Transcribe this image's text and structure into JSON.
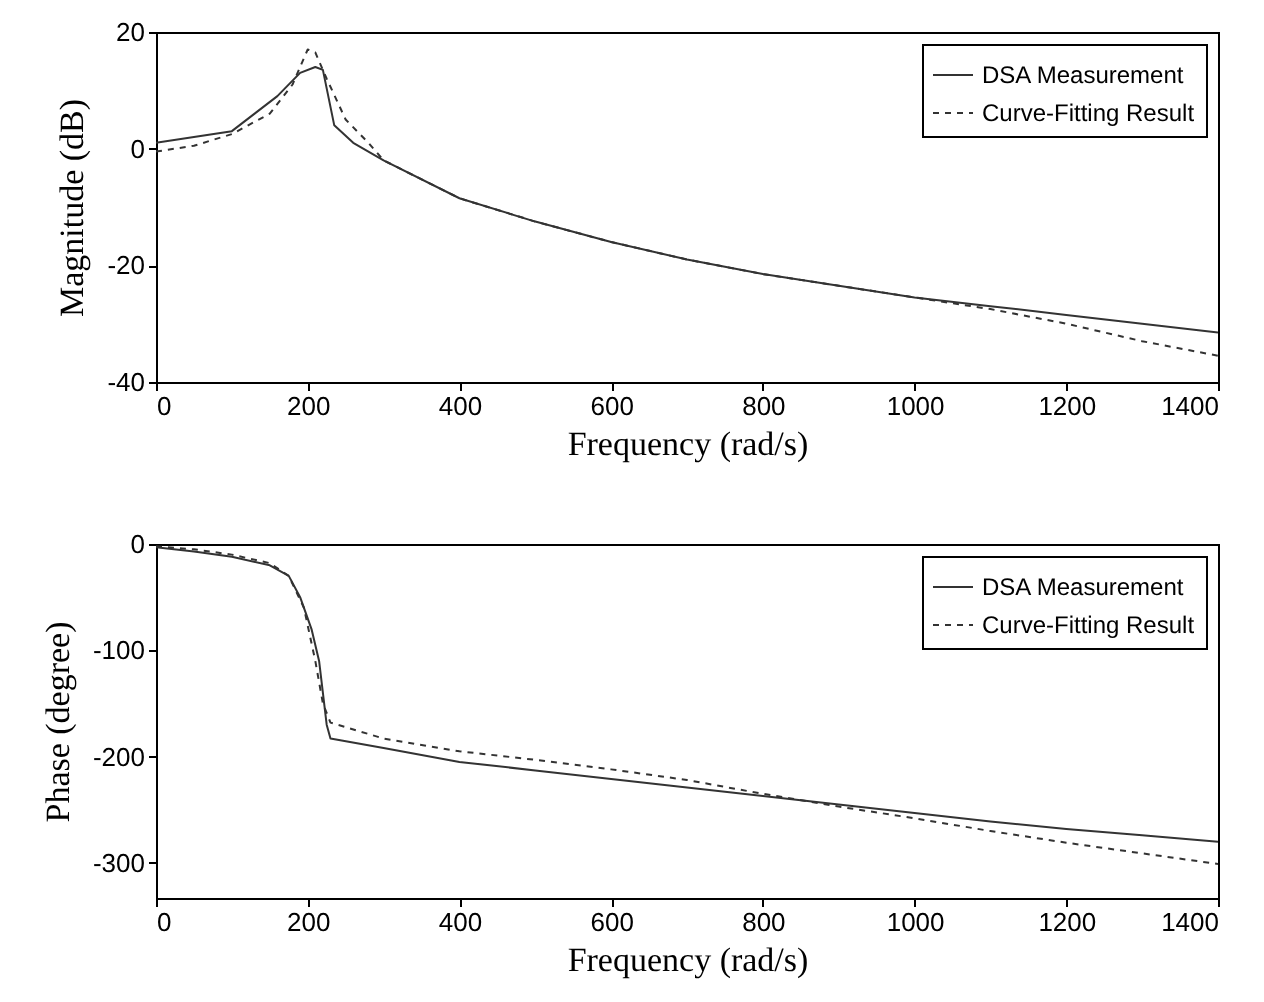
{
  "chart_data": [
    {
      "type": "line",
      "xlabel": "Frequency (rad/s)",
      "ylabel": "Magnitude (dB)",
      "xlim": [
        0,
        1400
      ],
      "xticks": [
        0,
        200,
        400,
        600,
        800,
        1000,
        1200,
        1400
      ],
      "ylim": [
        -40,
        20
      ],
      "yticks": [
        -40,
        -20,
        0,
        20
      ],
      "grid": false,
      "legend": "top right",
      "series": [
        {
          "name": "DSA Measurement",
          "color": "#333333",
          "line_style": "solid",
          "x": [
            0,
            50,
            100,
            130,
            160,
            190,
            210,
            220,
            235,
            260,
            300,
            400,
            500,
            600,
            700,
            800,
            900,
            1000,
            1100,
            1200,
            1300,
            1400
          ],
          "values": [
            1,
            2,
            3,
            6,
            9,
            13,
            14,
            13.5,
            4,
            1,
            -2,
            -8.5,
            -12.5,
            -16,
            -19,
            -21.5,
            -23.5,
            -25.5,
            -27,
            -28.5,
            -30,
            -31.5
          ]
        },
        {
          "name": "Curve-Fitting Result",
          "color": "#333333",
          "line_style": "dashed",
          "x": [
            0,
            50,
            100,
            150,
            180,
            200,
            210,
            225,
            250,
            280,
            300,
            400,
            500,
            600,
            700,
            800,
            900,
            1000,
            1100,
            1200,
            1300,
            1400
          ],
          "values": [
            -0.5,
            0.5,
            2.5,
            6,
            11,
            17,
            16.5,
            12,
            5,
            1,
            -2,
            -8.5,
            -12.5,
            -16,
            -19,
            -21.5,
            -23.5,
            -25.5,
            -27.5,
            -30,
            -33,
            -35.5
          ]
        }
      ]
    },
    {
      "type": "line",
      "xlabel": "Frequency (rad/s)",
      "ylabel": "Phase (degree)",
      "xlim": [
        0,
        1400
      ],
      "xticks": [
        0,
        200,
        400,
        600,
        800,
        1000,
        1200,
        1400
      ],
      "ylim": [
        -333,
        0
      ],
      "yticks": [
        -300,
        -200,
        -100,
        0
      ],
      "grid": false,
      "legend": "top right",
      "series": [
        {
          "name": "DSA Measurement",
          "color": "#333333",
          "line_style": "solid",
          "x": [
            0,
            50,
            100,
            150,
            175,
            190,
            205,
            215,
            225,
            230,
            300,
            400,
            500,
            600,
            700,
            800,
            900,
            1000,
            1100,
            1200,
            1300,
            1400
          ],
          "values": [
            -3,
            -7,
            -12,
            -20,
            -30,
            -50,
            -80,
            -110,
            -170,
            -183,
            -192,
            -205,
            -213,
            -221,
            -229,
            -237,
            -245,
            -253,
            -261,
            -268,
            -274,
            -280
          ]
        },
        {
          "name": "Curve-Fitting Result",
          "color": "#333333",
          "line_style": "dashed",
          "x": [
            0,
            50,
            100,
            150,
            175,
            195,
            210,
            220,
            230,
            300,
            400,
            500,
            600,
            700,
            800,
            900,
            1000,
            1100,
            1200,
            1300,
            1400
          ],
          "values": [
            -2,
            -5,
            -10,
            -18,
            -30,
            -60,
            -110,
            -150,
            -168,
            -183,
            -195,
            -203,
            -212,
            -222,
            -235,
            -247,
            -258,
            -270,
            -281,
            -291,
            -301
          ]
        }
      ]
    }
  ]
}
